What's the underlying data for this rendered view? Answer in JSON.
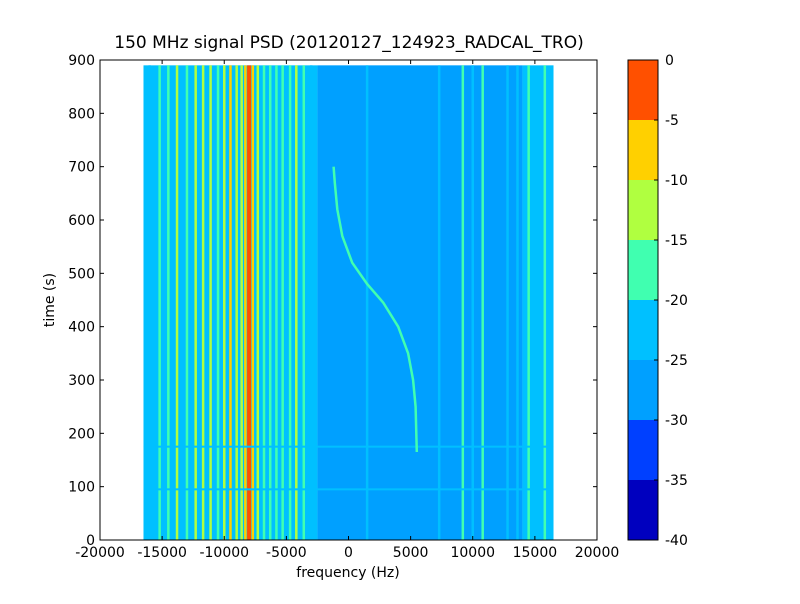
{
  "chart_data": {
    "type": "heatmap",
    "title": "150 MHz signal PSD (20120127_124923_RADCAL_TRO)",
    "xlabel": "frequency (Hz)",
    "ylabel": "time (s)",
    "xlim": [
      -20000,
      20000
    ],
    "ylim": [
      0,
      900
    ],
    "x_ticks": [
      -20000,
      -15000,
      -10000,
      -5000,
      0,
      5000,
      10000,
      15000,
      20000
    ],
    "y_ticks": [
      0,
      100,
      200,
      300,
      400,
      500,
      600,
      700,
      800,
      900
    ],
    "data_extent": {
      "x": [
        -16500,
        16500
      ],
      "y": [
        0,
        890
      ]
    },
    "colorbar": {
      "ticks": [
        0,
        -5,
        -10,
        -15,
        -20,
        -25,
        -30,
        -35,
        -40
      ],
      "levels": [
        -40,
        -35,
        -30,
        -25,
        -20,
        -15,
        -10,
        -5,
        0
      ],
      "colors": [
        "#0000bf",
        "#0040ff",
        "#00a0ff",
        "#00c0ff",
        "#40ffb0",
        "#b0ff40",
        "#ffd000",
        "#ff5000",
        "#bf0000"
      ]
    },
    "background_levels": [
      {
        "x_range": [
          -16500,
          -2500
        ],
        "level": -22.5
      },
      {
        "x_range": [
          -2500,
          14000
        ],
        "level": -27.5
      },
      {
        "x_range": [
          14000,
          16500
        ],
        "level": -22.5
      }
    ],
    "vertical_features": [
      {
        "x": -16000,
        "level": -22.5
      },
      {
        "x": -15200,
        "level": -17.5
      },
      {
        "x": -14500,
        "level": -17.5
      },
      {
        "x": -13800,
        "level": -12.5
      },
      {
        "x": -13000,
        "level": -17.5
      },
      {
        "x": -12300,
        "level": -12.5
      },
      {
        "x": -11700,
        "level": -12.5
      },
      {
        "x": -11100,
        "level": -12.5
      },
      {
        "x": -10500,
        "level": -17.5
      },
      {
        "x": -10000,
        "level": -12.5
      },
      {
        "x": -9500,
        "level": -7.5
      },
      {
        "x": -9000,
        "level": -12.5
      },
      {
        "x": -8600,
        "level": -12.5
      },
      {
        "x": -8300,
        "level": -7.5
      },
      {
        "x": -8000,
        "level": -2.5
      },
      {
        "x": -7700,
        "level": -7.5
      },
      {
        "x": -7300,
        "level": -12.5
      },
      {
        "x": -6800,
        "level": -17.5
      },
      {
        "x": -6300,
        "level": -17.5
      },
      {
        "x": -5800,
        "level": -17.5
      },
      {
        "x": -5300,
        "level": -17.5
      },
      {
        "x": -4700,
        "level": -17.5
      },
      {
        "x": -4200,
        "level": -12.5
      },
      {
        "x": -3600,
        "level": -17.5
      },
      {
        "x": -3000,
        "level": -22.5
      },
      {
        "x": 1500,
        "level": -22.5
      },
      {
        "x": 7300,
        "level": -22.5
      },
      {
        "x": 9200,
        "level": -17.5
      },
      {
        "x": 10000,
        "level": -22.5
      },
      {
        "x": 10800,
        "level": -17.5
      },
      {
        "x": 12800,
        "level": -22.5
      },
      {
        "x": 13600,
        "level": -22.5
      },
      {
        "x": 14500,
        "level": -17.5
      },
      {
        "x": 15800,
        "level": -17.5
      }
    ],
    "horizontal_features": [
      {
        "y": 95,
        "level": -22.5
      },
      {
        "y": 175,
        "level": -22.5
      }
    ],
    "doppler_track": [
      {
        "x": 5500,
        "y": 165
      },
      {
        "x": 5400,
        "y": 250
      },
      {
        "x": 5200,
        "y": 300
      },
      {
        "x": 4800,
        "y": 350
      },
      {
        "x": 4000,
        "y": 400
      },
      {
        "x": 2800,
        "y": 445
      },
      {
        "x": 1500,
        "y": 480
      },
      {
        "x": 300,
        "y": 520
      },
      {
        "x": -500,
        "y": 570
      },
      {
        "x": -900,
        "y": 620
      },
      {
        "x": -1100,
        "y": 670
      },
      {
        "x": -1200,
        "y": 700
      }
    ],
    "doppler_track_level": -17.5
  }
}
